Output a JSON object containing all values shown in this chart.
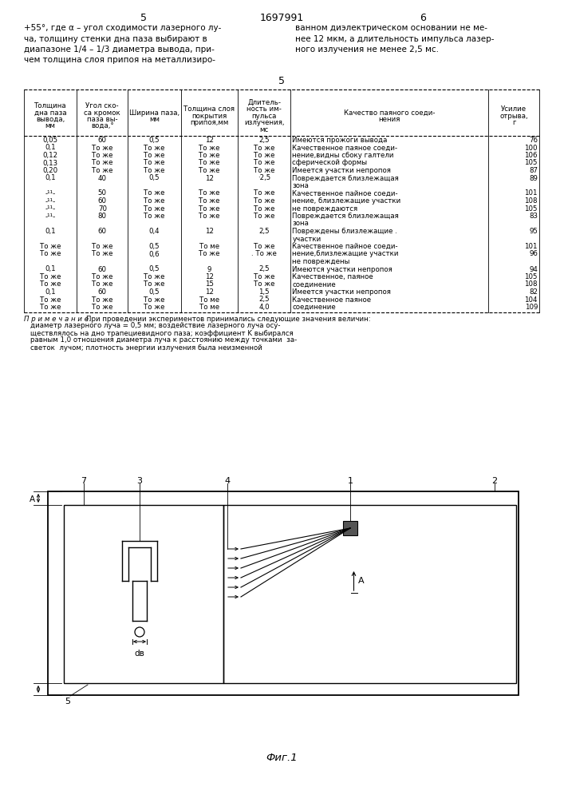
{
  "page_number_left": "5",
  "page_number_center": "1697991",
  "page_number_right": "6",
  "left_col_lines": [
    "+55°, где α – угол сходимости лазерного лу-",
    "ча, толщину стенки дна паза выбирают в",
    "диапазоне 1/4 – 1/3 диаметра вывода, при-",
    "чем толщина слоя припоя на металлизиро-"
  ],
  "right_col_lines": [
    "ванном диэлектрическом основании не ме-",
    "нее 12 мкм, а длительность импульса лазер-",
    "ного излучения не менее 2,5 мс."
  ],
  "center_num": "5",
  "col_headers": [
    [
      "Толщина",
      "дна паза",
      "вывода,",
      "мм"
    ],
    [
      "Угол ско-",
      "са кромок",
      "паза вы-",
      "вода,°"
    ],
    [
      "Ширина паза,",
      "мм",
      "",
      ""
    ],
    [
      "Толщина слоя",
      "покрытия",
      "припоя,мм",
      ""
    ],
    [
      "Длитель-",
      "ность им-",
      "пульса",
      "излучения,"
    ],
    [
      "Качество паяного соеди-",
      "нения",
      "",
      ""
    ],
    [
      "Усилие",
      "отрыва,",
      "г",
      ""
    ]
  ],
  "col_header_extra": [
    "",
    "",
    "",
    "",
    "мс",
    "",
    ""
  ],
  "table_rows": [
    [
      "0,05",
      "60",
      "0,5",
      "12",
      "2,5",
      "Имеются прожоги вывода",
      "76"
    ],
    [
      "0,1",
      "То же",
      "То же",
      "То же",
      "То же",
      "Качественное паяное соеди-",
      "100"
    ],
    [
      "0,12",
      "То же",
      "То же",
      "То же",
      "То же",
      "нение,видны сбоку галтели",
      "106"
    ],
    [
      "0,13",
      "То же",
      "То же",
      "То же",
      "То же",
      "сферической формы",
      "105"
    ],
    [
      "0,20",
      "То же",
      "То же",
      "То же",
      "То же",
      "Имеется участки непропоя",
      "87"
    ],
    [
      "0,1",
      "40",
      "0,5",
      "12",
      "·2,5",
      "Повреждается близлежащая",
      "89"
    ],
    [
      "",
      "",
      "",
      "",
      "",
      "зона",
      ""
    ],
    [
      "-¹¹-",
      "50",
      "То же",
      "То же",
      "То же",
      "Качественное пайное соеди-",
      "101"
    ],
    [
      "-¹¹-",
      "60",
      "То же",
      "То же",
      "То же",
      "нение, близлежащие участки",
      "108"
    ],
    [
      "-¹¹-",
      "70",
      "То же",
      "То же",
      "То же",
      "не повреждаются",
      "105"
    ],
    [
      "-¹¹-",
      "80",
      "То же",
      "То же",
      "То же",
      "Повреждается близлежащая",
      "83"
    ],
    [
      "",
      "",
      "",
      "",
      "",
      "зона",
      ""
    ],
    [
      "0,1",
      "60",
      "0,4",
      "12",
      "2,5",
      "Повреждены близлежащие .",
      "95"
    ],
    [
      "",
      "",
      "",
      "",
      "",
      "участки",
      ""
    ],
    [
      "То же",
      "То же",
      "0,5",
      "То ме",
      "То же",
      "Качественное пайное соеди-",
      "101"
    ],
    [
      "То же",
      "То же",
      "0,6",
      "То же",
      ". То же",
      "нение,близлежащие участки",
      "96"
    ],
    [
      "",
      "",
      "",
      "",
      "",
      "не повреждены",
      ""
    ],
    [
      "0,1",
      "60",
      "0,5",
      "9",
      "2,5",
      "Имеются участки непропоя",
      "94"
    ],
    [
      "То же",
      "То же",
      "То же",
      "12",
      "То же",
      "Качественное, паяное",
      "105"
    ],
    [
      "То же",
      "То же",
      "То же",
      "15",
      "То же",
      "соединение",
      "108"
    ],
    [
      "0,1",
      "60",
      "0,5",
      "12",
      "1,5",
      "Имеется участки непропоя",
      "82"
    ],
    [
      "То же",
      "То же",
      "То же",
      "То ме",
      "2,5",
      "Качественное паяное",
      "104"
    ],
    [
      "То же",
      "То же",
      "То же",
      "То ме",
      "4,0",
      "соединение",
      "109"
    ]
  ],
  "note_lines": [
    "П р и м е ч а н и е.  При проведении экспериментов принимались следующие значения величин:",
    "диаметр лазерного луча = 0,5 мм; воздействие лазерного луча осу-",
    "ществлялось на дно трапециевидного паза; коэффициент K выбирался",
    "равным 1,0 отношения диаметра луча к расстоянию между точками  за-",
    "светок  лучом; плотность энергии излучения была неизменной"
  ],
  "fig_caption": "Фиг.1",
  "bg": "#ffffff"
}
